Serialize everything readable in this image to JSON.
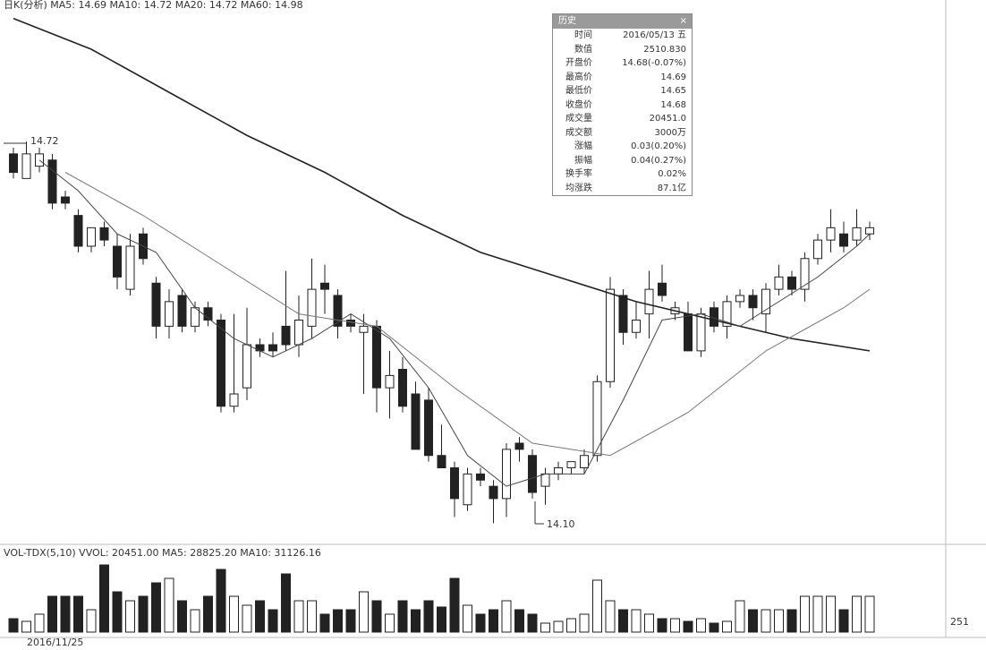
{
  "chart_data": {
    "type": "candlestick",
    "legend_text": "日K(分析) MA5: 14.69 MA10: 14.72 MA20: 14.72 MA60: 14.98",
    "high_label": "14.72",
    "low_label": "14.10",
    "ylim": [
      14.07,
      14.95
    ],
    "open": [
      14.7,
      14.66,
      14.68,
      14.69,
      14.63,
      14.6,
      14.55,
      14.58,
      14.55,
      14.48,
      14.57,
      14.49,
      14.42,
      14.47,
      14.42,
      14.45,
      14.43,
      14.29,
      14.32,
      14.39,
      14.39,
      14.42,
      14.39,
      14.42,
      14.49,
      14.47,
      14.43,
      14.41,
      14.42,
      14.32,
      14.35,
      14.31,
      14.3,
      14.21,
      14.19,
      14.13,
      14.18,
      14.16,
      14.14,
      14.23,
      14.21,
      14.16,
      14.18,
      14.19,
      14.19,
      14.21,
      14.33,
      14.47,
      14.41,
      14.44,
      14.49,
      14.44,
      14.44,
      14.38,
      14.45,
      14.42,
      14.46,
      14.47,
      14.44,
      14.48,
      14.5,
      14.48,
      14.53,
      14.56,
      14.57,
      14.56,
      14.57
    ],
    "high": [
      14.71,
      14.72,
      14.71,
      14.7,
      14.64,
      14.61,
      14.58,
      14.59,
      14.57,
      14.57,
      14.58,
      14.5,
      14.48,
      14.48,
      14.46,
      14.46,
      14.44,
      14.44,
      14.45,
      14.4,
      14.41,
      14.51,
      14.47,
      14.53,
      14.52,
      14.48,
      14.44,
      14.44,
      14.43,
      14.38,
      14.37,
      14.33,
      14.32,
      14.26,
      14.2,
      14.19,
      14.19,
      14.17,
      14.23,
      14.24,
      14.22,
      14.19,
      14.2,
      14.2,
      14.22,
      14.34,
      14.5,
      14.48,
      14.46,
      14.51,
      14.52,
      14.46,
      14.46,
      14.45,
      14.46,
      14.47,
      14.48,
      14.48,
      14.49,
      14.52,
      14.51,
      14.54,
      14.57,
      14.61,
      14.59,
      14.61,
      14.59
    ],
    "low": [
      14.66,
      14.66,
      14.67,
      14.61,
      14.61,
      14.54,
      14.54,
      14.55,
      14.48,
      14.47,
      14.52,
      14.4,
      14.4,
      14.41,
      14.41,
      14.42,
      14.28,
      14.28,
      14.3,
      14.37,
      14.37,
      14.38,
      14.37,
      14.4,
      14.44,
      14.4,
      14.41,
      14.31,
      14.28,
      14.27,
      14.28,
      14.22,
      14.2,
      14.19,
      14.11,
      14.12,
      14.16,
      14.1,
      14.11,
      14.2,
      14.14,
      14.13,
      14.17,
      14.18,
      14.18,
      14.2,
      14.32,
      14.39,
      14.4,
      14.4,
      14.46,
      14.43,
      14.38,
      14.37,
      14.41,
      14.4,
      14.45,
      14.43,
      14.41,
      14.47,
      14.47,
      14.46,
      14.52,
      14.54,
      14.54,
      14.55,
      14.56
    ],
    "close": [
      14.67,
      14.7,
      14.7,
      14.62,
      14.62,
      14.55,
      14.58,
      14.56,
      14.5,
      14.55,
      14.53,
      14.42,
      14.46,
      14.42,
      14.45,
      14.43,
      14.29,
      14.31,
      14.39,
      14.38,
      14.38,
      14.39,
      14.43,
      14.48,
      14.48,
      14.42,
      14.42,
      14.42,
      14.32,
      14.34,
      14.29,
      14.22,
      14.21,
      14.19,
      14.14,
      14.18,
      14.17,
      14.14,
      14.22,
      14.22,
      14.15,
      14.18,
      14.19,
      14.2,
      14.21,
      14.33,
      14.48,
      14.41,
      14.43,
      14.48,
      14.47,
      14.45,
      14.38,
      14.44,
      14.42,
      14.46,
      14.47,
      14.45,
      14.48,
      14.5,
      14.48,
      14.53,
      14.56,
      14.58,
      14.55,
      14.58,
      14.58
    ],
    "ma_lines": [
      {
        "color": "#222222",
        "x": [
          0,
          6,
          12,
          18,
          24,
          30,
          36,
          42,
          48,
          54,
          60,
          66
        ],
        "values": [
          14.92,
          14.87,
          14.8,
          14.73,
          14.67,
          14.6,
          14.54,
          14.5,
          14.46,
          14.43,
          14.4,
          14.38
        ]
      },
      {
        "color": "#444444",
        "x": [
          2,
          5,
          8,
          11,
          14,
          17,
          20,
          23,
          26,
          29,
          32,
          35,
          38,
          41,
          44,
          47,
          50,
          53,
          56,
          59,
          62,
          65,
          66
        ],
        "values": [
          14.69,
          14.64,
          14.57,
          14.54,
          14.45,
          14.4,
          14.37,
          14.4,
          14.44,
          14.4,
          14.32,
          14.21,
          14.16,
          14.18,
          14.18,
          14.3,
          14.43,
          14.44,
          14.42,
          14.46,
          14.5,
          14.55,
          14.57
        ]
      },
      {
        "color": "#777777",
        "x": [
          4,
          10,
          16,
          22,
          28,
          34,
          40,
          46,
          52,
          58,
          64,
          66
        ],
        "values": [
          14.67,
          14.6,
          14.52,
          14.44,
          14.42,
          14.32,
          14.23,
          14.21,
          14.28,
          14.38,
          14.45,
          14.48
        ]
      }
    ],
    "volume_legend_text": "VOL-TDX(5,10) VVOL: 20451.00 MA5: 28825.20 MA10: 31126.16",
    "vlim": [
      0,
      80
    ],
    "volume": [
      15,
      12,
      20,
      40,
      40,
      40,
      25,
      75,
      45,
      35,
      40,
      55,
      60,
      35,
      25,
      40,
      70,
      40,
      30,
      35,
      25,
      65,
      35,
      35,
      20,
      25,
      25,
      45,
      35,
      20,
      35,
      25,
      35,
      28,
      60,
      30,
      20,
      25,
      35,
      25,
      20,
      10,
      12,
      15,
      20,
      58,
      35,
      25,
      25,
      20,
      15,
      15,
      12,
      15,
      10,
      12,
      35,
      25,
      25,
      25,
      25,
      40,
      40,
      40,
      25,
      40,
      40
    ],
    "date_label": "2016/11/25",
    "volume_axis_label": "251"
  },
  "info_panel": {
    "title": "历史",
    "rows": [
      [
        "时间",
        "2016/05/13 五"
      ],
      [
        "数值",
        "2510.830"
      ],
      [
        "开盘价",
        "14.68(-0.07%)"
      ],
      [
        "最高价",
        "14.69"
      ],
      [
        "最低价",
        "14.65"
      ],
      [
        "收盘价",
        "14.68"
      ],
      [
        "成交量",
        "20451.0"
      ],
      [
        "成交额",
        "3000万"
      ],
      [
        "涨幅",
        "0.03(0.20%)"
      ],
      [
        "振幅",
        "0.04(0.27%)"
      ],
      [
        "换手率",
        "0.02%"
      ],
      [
        "均涨跌",
        "87.1亿"
      ]
    ]
  }
}
